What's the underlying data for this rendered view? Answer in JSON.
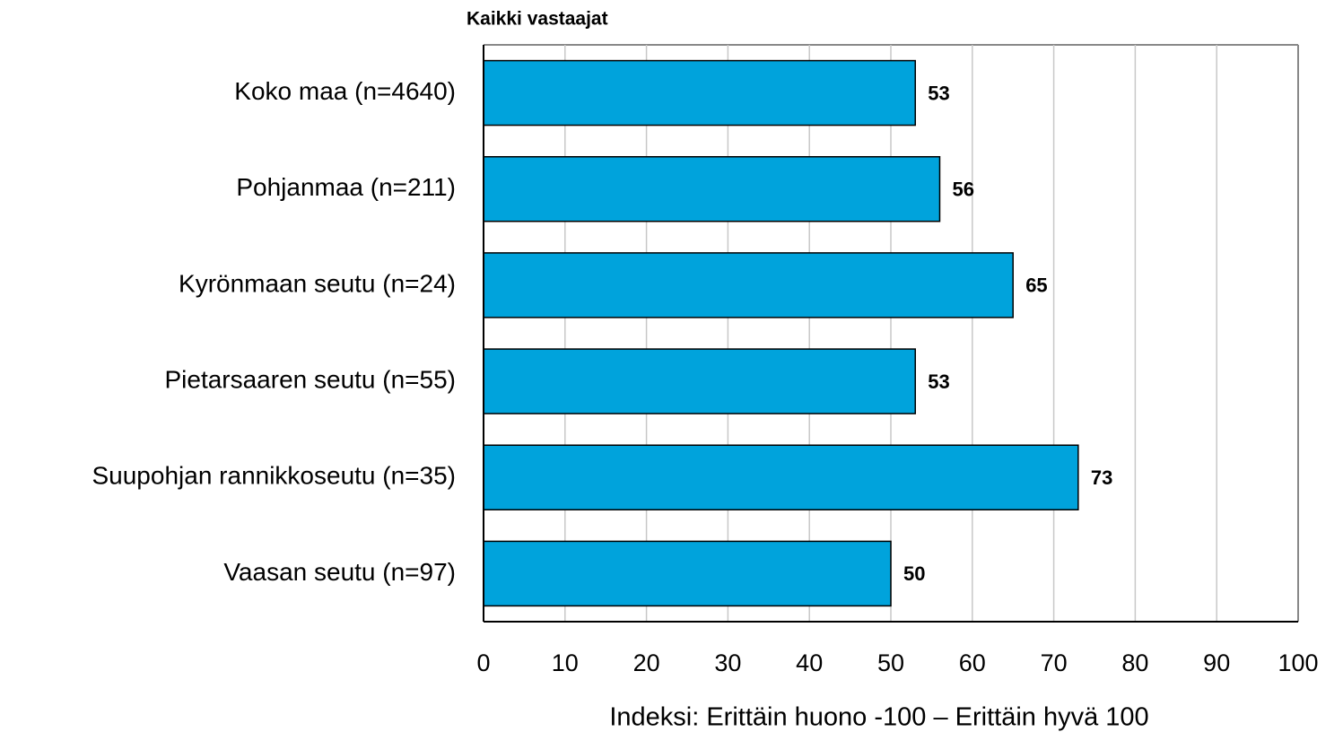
{
  "chart_data": {
    "type": "hbar",
    "title": "Kaikki vastaajat",
    "categories": [
      "Koko maa (n=4640)",
      "Pohjanmaa (n=211)",
      "Kyrönmaan seutu (n=24)",
      "Pietarsaaren seutu (n=55)",
      "Suupohjan rannikkoseutu (n=35)",
      "Vaasan seutu (n=97)"
    ],
    "values": [
      53,
      56,
      65,
      53,
      73,
      50
    ],
    "color": "#00a3dc",
    "xlabel": "Indeksi: Erittäin huono -100 – Erittäin hyvä 100",
    "xlim": [
      0,
      100
    ],
    "xticks": [
      0,
      10,
      20,
      30,
      40,
      50,
      60,
      70,
      80,
      90,
      100
    ],
    "grid": true
  }
}
